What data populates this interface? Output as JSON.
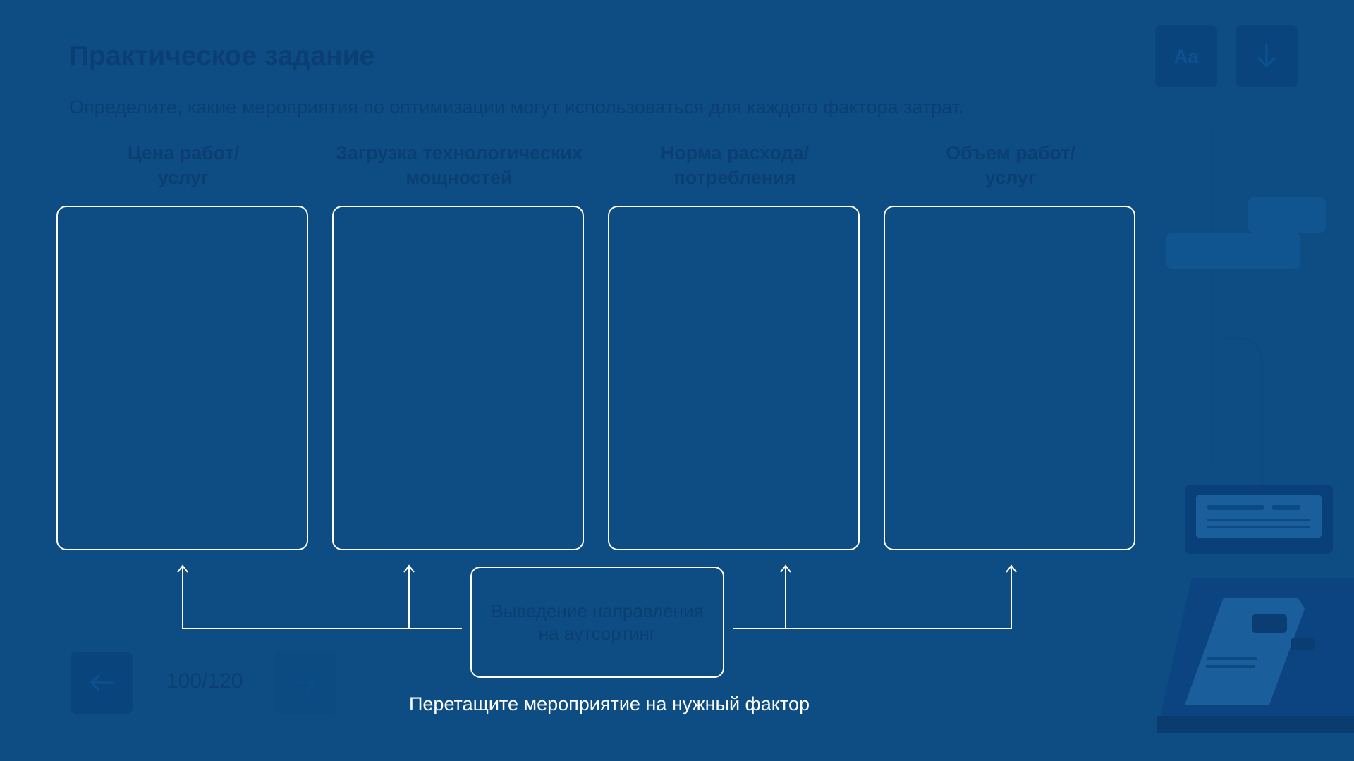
{
  "header": {
    "title": "Практическое задание",
    "instruction": "Определите, какие мероприятия по оптимизации могут использоваться для каждого фактора затрат."
  },
  "toolbar": {
    "font_button_label": "Aa",
    "download_icon": "arrow-down-icon"
  },
  "columns": [
    {
      "line1": "Цена работ/",
      "line2": "услуг"
    },
    {
      "line1": "Загрузка технологических",
      "line2": "мощностей"
    },
    {
      "line1": "Норма расхода/",
      "line2": "потребления"
    },
    {
      "line1": "Объем работ/",
      "line2": "услуг"
    }
  ],
  "drag_card": {
    "line1": "Выведение направления",
    "line2": "на аутсортинг"
  },
  "hint": "Перетащите мероприятие на нужный фактор",
  "pagination": {
    "label": "100/120",
    "prev_icon": "arrow-left-icon",
    "next_icon": "arrow-right-icon"
  },
  "colors": {
    "background": "#0e4d83",
    "dim_text": "#0b3e72",
    "accent": "#ffffff"
  }
}
